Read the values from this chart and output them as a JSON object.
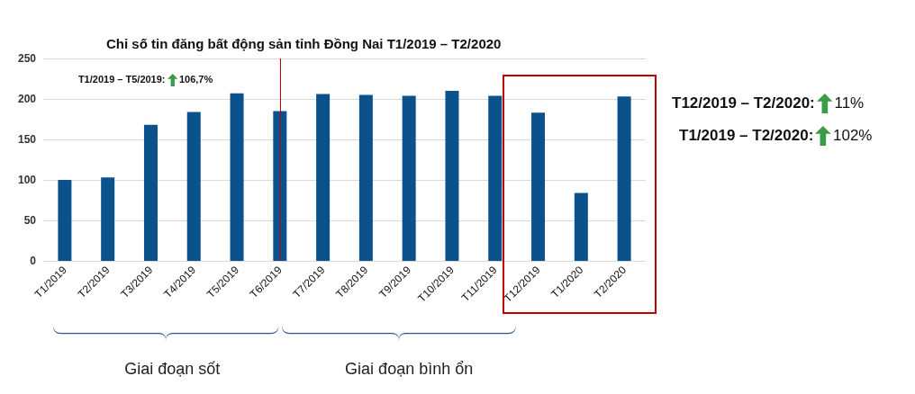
{
  "chart_data": {
    "type": "bar",
    "title": "Chỉ số tin đăng bất động sản tỉnh Đồng Nai T1/2019 – T2/2020",
    "categories": [
      "T1/2019",
      "T2/2019",
      "T3/2019",
      "T4/2019",
      "T5/2019",
      "T6/2019",
      "T7/2019",
      "T8/2019",
      "T9/2019",
      "T10/2019",
      "T11/2019",
      "T12/2019",
      "T1/2020",
      "T2/2020"
    ],
    "values": [
      100,
      103,
      168,
      184,
      207,
      185,
      206,
      205,
      204,
      210,
      204,
      183,
      84,
      203
    ],
    "color": "#0b528c",
    "ylim": [
      0,
      250
    ],
    "yticks": [
      0,
      50,
      100,
      150,
      200,
      250
    ],
    "grid": "y",
    "ref_lines": [
      {
        "axis": "x",
        "value": "T6/2019",
        "color": "#c00000"
      }
    ],
    "annotations": [
      "T1/2019 – T5/2019: 106,7%",
      "T12/2019 – T2/2020: 11%",
      "T1/2019 – T2/2020: 102%",
      "Giai đoạn sốt",
      "Giai đoạn bình ổn"
    ]
  }
}
